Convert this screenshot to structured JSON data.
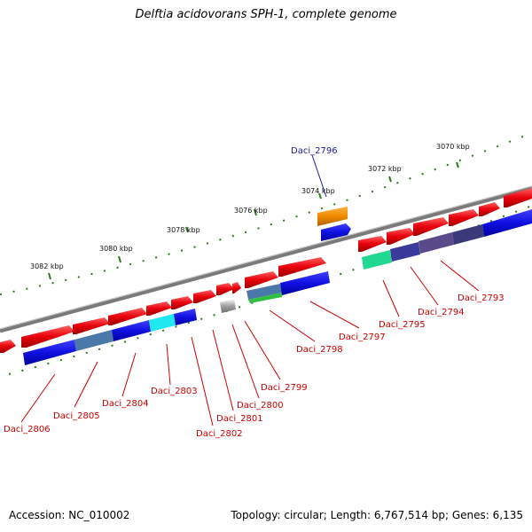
{
  "title": "Delftia acidovorans SPH-1, complete genome",
  "footer": {
    "accession": "Accession: NC_010002",
    "topology": "Topology: circular; Length: 6,767,514 bp; Genes: 6,135"
  },
  "scale_labels": [
    "3070 kbp",
    "3072 kbp",
    "3074 kbp",
    "3076 kbp",
    "3078 kbp",
    "3080 kbp",
    "3082 kbp"
  ],
  "gene_labels": [
    {
      "name": "Daci_2796",
      "highlight": true
    },
    {
      "name": "Daci_2793"
    },
    {
      "name": "Daci_2794"
    },
    {
      "name": "Daci_2795"
    },
    {
      "name": "Daci_2797"
    },
    {
      "name": "Daci_2798"
    },
    {
      "name": "Daci_2799"
    },
    {
      "name": "Daci_2800"
    },
    {
      "name": "Daci_2801"
    },
    {
      "name": "Daci_2802"
    },
    {
      "name": "Daci_2803"
    },
    {
      "name": "Daci_2804"
    },
    {
      "name": "Daci_2805"
    },
    {
      "name": "Daci_2806"
    }
  ],
  "colors": {
    "forward_gene": "#e8000b",
    "reverse_track": "#1010e0",
    "backbone": "#808080",
    "scale_dots": "#2a7a1a",
    "highlight_gene": "#f08a00",
    "label_red": "#cc0000",
    "label_blue": "#1a1aaa"
  }
}
